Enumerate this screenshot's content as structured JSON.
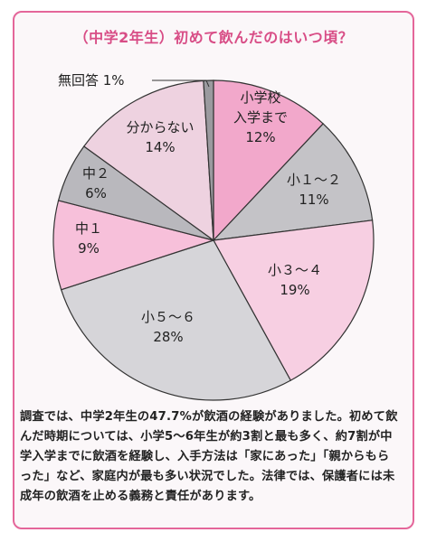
{
  "title": "（中学2年生）初めて飲んだのはいつ頃？",
  "chart_data": {
    "type": "pie",
    "slices": [
      {
        "label": "小学校入学まで",
        "lines": [
          "小学校",
          "入学まで",
          "12%"
        ],
        "value": 12,
        "color": "#f2a8cb"
      },
      {
        "label": "小１～２",
        "lines": [
          "小１～２",
          "11%"
        ],
        "value": 11,
        "color": "#c4c3c7"
      },
      {
        "label": "小３～４",
        "lines": [
          "小３～４",
          "19%"
        ],
        "value": 19,
        "color": "#f7cfe2"
      },
      {
        "label": "小５～６",
        "lines": [
          "小５～６",
          "28%"
        ],
        "value": 28,
        "color": "#d6d5d9"
      },
      {
        "label": "中１",
        "lines": [
          "中１",
          "9%"
        ],
        "value": 9,
        "color": "#f7c0da"
      },
      {
        "label": "中２",
        "lines": [
          "中２",
          "6%"
        ],
        "value": 6,
        "color": "#b9b8bd"
      },
      {
        "label": "分からない",
        "lines": [
          "分からない",
          "14%"
        ],
        "value": 14,
        "color": "#eed2e0"
      },
      {
        "label": "無回答",
        "lines": [
          "無回答 1%"
        ],
        "value": 1,
        "color": "#9b9a9f"
      }
    ]
  },
  "caption": "調査では、中学2年生の47.7%が飲酒の経験がありました。初めて飲んだ時期については、小学5～6年生が約3割と最も多く、約7割が中学入学までに飲酒を経験し、入手方法は「家にあった」「親からもらった」など、家庭内が最も多い状況でした。法律では、保護者には未成年の飲酒を止める義務と責任があります。"
}
